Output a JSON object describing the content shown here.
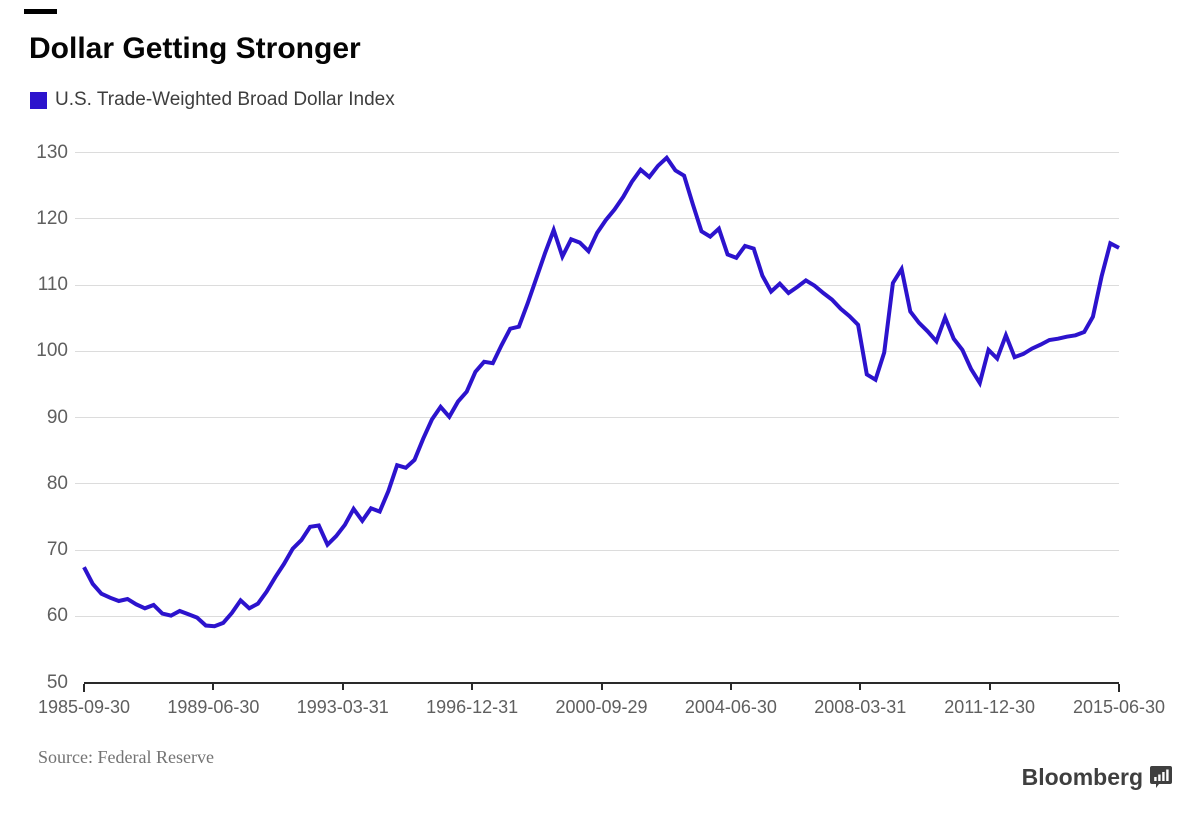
{
  "header": {
    "title": "Dollar Getting Stronger",
    "legend_label": "U.S. Trade-Weighted Broad Dollar Index"
  },
  "footer": {
    "source": "Source: Federal Reserve",
    "brand": "Bloomberg"
  },
  "colors": {
    "line": "#2c13cd",
    "legend_swatch": "#2c13cd",
    "grid": "#dcdcdc",
    "axis": "#2a2a2a",
    "tick_label": "#5f5f5f"
  },
  "chart_data": {
    "type": "line",
    "title": "Dollar Getting Stronger",
    "series_name": "U.S. Trade-Weighted Broad Dollar Index",
    "frequency": "quarterly",
    "x_start": "1985-09-30",
    "x_end": "2015-06-30",
    "x_tick_labels": [
      "1985-09-30",
      "1989-06-30",
      "1993-03-31",
      "1996-12-31",
      "2000-09-29",
      "2004-06-30",
      "2008-03-31",
      "2011-12-30",
      "2015-06-30"
    ],
    "y_ticks": [
      130,
      120,
      110,
      100,
      90,
      80,
      70,
      60,
      50
    ],
    "ylim": [
      50,
      130
    ],
    "grid": "horizontal-only",
    "legend_position": "top-left",
    "values": [
      67.4,
      64.9,
      63.4,
      62.8,
      62.3,
      62.6,
      61.8,
      61.2,
      61.7,
      60.4,
      60.1,
      60.8,
      60.3,
      59.8,
      58.6,
      58.5,
      59.0,
      60.5,
      62.4,
      61.2,
      61.9,
      63.7,
      65.9,
      67.9,
      70.2,
      71.5,
      73.5,
      73.7,
      70.8,
      72.1,
      73.8,
      76.2,
      74.4,
      76.3,
      75.8,
      78.9,
      82.8,
      82.4,
      83.6,
      86.8,
      89.7,
      91.6,
      90.1,
      92.4,
      93.9,
      96.9,
      98.4,
      98.2,
      100.9,
      103.4,
      103.7,
      107.2,
      111.0,
      114.8,
      118.3,
      114.3,
      116.9,
      116.4,
      115.1,
      117.9,
      119.8,
      121.4,
      123.3,
      125.6,
      127.4,
      126.3,
      128.0,
      129.2,
      127.3,
      126.5,
      122.2,
      118.1,
      117.3,
      118.5,
      114.6,
      114.1,
      115.9,
      115.5,
      111.4,
      109.0,
      110.2,
      108.8,
      109.7,
      110.7,
      109.9,
      108.8,
      107.8,
      106.4,
      105.3,
      104.0,
      96.5,
      95.7,
      99.8,
      110.3,
      112.4,
      106.0,
      104.3,
      103.0,
      101.5,
      105.1,
      101.9,
      100.2,
      97.3,
      95.2,
      100.2,
      98.9,
      102.4,
      99.1,
      99.6,
      100.4,
      101.0,
      101.7,
      101.9,
      102.2,
      102.4,
      102.9,
      105.2,
      111.3,
      116.3,
      115.6
    ]
  }
}
